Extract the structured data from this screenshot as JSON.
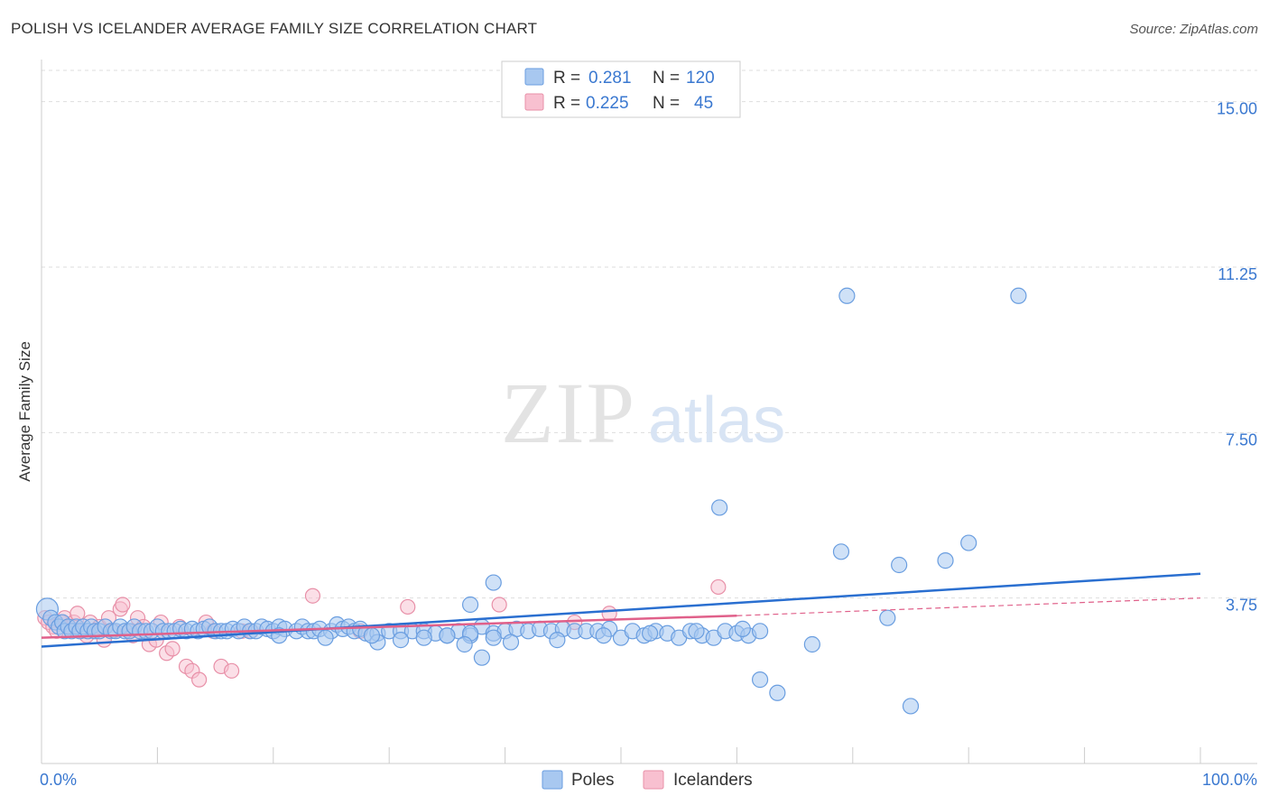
{
  "header": {
    "title": "POLISH VS ICELANDER AVERAGE FAMILY SIZE CORRELATION CHART",
    "source": "Source: ZipAtlas.com"
  },
  "watermark": {
    "zip": "ZIP",
    "atlas": "atlas"
  },
  "legend_top": {
    "rows": [
      {
        "r_label": "R =",
        "r_value": "0.281",
        "n_label": "N =",
        "n_value": "120",
        "color": "#a8c8f0"
      },
      {
        "r_label": "R =",
        "r_value": "0.225",
        "n_label": "N =",
        "n_value": "45",
        "color": "#f8b8cc"
      }
    ]
  },
  "legend_bottom": {
    "items": [
      "Poles",
      "Icelanders"
    ]
  },
  "colors": {
    "poles_fill": "#a8c8f0",
    "poles_stroke": "#6a9ee0",
    "poles_line": "#2a6fd0",
    "icel_fill": "#f8c0d0",
    "icel_stroke": "#e890a8",
    "icel_line": "#e0608a",
    "tick_label": "#3a78d0",
    "grid": "#dddddd"
  },
  "chart_data": {
    "type": "scatter",
    "title": "POLISH VS ICELANDER AVERAGE FAMILY SIZE CORRELATION CHART",
    "xlabel": "",
    "ylabel": "Average Family Size",
    "xlim": [
      0,
      100
    ],
    "ylim": [
      0,
      15.75
    ],
    "x_tick_labels": [
      "0.0%",
      "100.0%"
    ],
    "y_ticks": [
      3.75,
      7.5,
      11.25,
      15.0
    ],
    "y_tick_labels": [
      "3.75",
      "7.50",
      "11.25",
      "15.00"
    ],
    "grid": true,
    "legend_position": "top-center",
    "series": [
      {
        "name": "Poles",
        "r": 0.281,
        "n": 120,
        "trend": {
          "x": [
            0,
            100
          ],
          "y": [
            2.65,
            4.3
          ]
        },
        "points": [
          [
            0.5,
            3.5
          ],
          [
            0.8,
            3.3
          ],
          [
            1.2,
            3.2
          ],
          [
            1.5,
            3.1
          ],
          [
            1.8,
            3.2
          ],
          [
            2.0,
            3.0
          ],
          [
            2.3,
            3.1
          ],
          [
            2.6,
            3.0
          ],
          [
            3.0,
            3.1
          ],
          [
            3.3,
            3.0
          ],
          [
            3.6,
            3.1
          ],
          [
            4.0,
            3.0
          ],
          [
            4.3,
            3.1
          ],
          [
            4.6,
            3.0
          ],
          [
            5.0,
            3.0
          ],
          [
            5.5,
            3.1
          ],
          [
            6.0,
            3.0
          ],
          [
            6.4,
            3.0
          ],
          [
            6.8,
            3.1
          ],
          [
            7.2,
            3.0
          ],
          [
            7.6,
            3.0
          ],
          [
            8.0,
            3.1
          ],
          [
            8.5,
            3.0
          ],
          [
            9.0,
            3.0
          ],
          [
            9.5,
            3.0
          ],
          [
            10.0,
            3.1
          ],
          [
            10.5,
            3.0
          ],
          [
            11.0,
            3.0
          ],
          [
            11.5,
            3.0
          ],
          [
            12.0,
            3.05
          ],
          [
            12.5,
            3.0
          ],
          [
            13.0,
            3.05
          ],
          [
            13.5,
            3.0
          ],
          [
            14.0,
            3.05
          ],
          [
            14.5,
            3.1
          ],
          [
            15.0,
            3.0
          ],
          [
            15.5,
            3.0
          ],
          [
            16.0,
            3.0
          ],
          [
            16.5,
            3.05
          ],
          [
            17.0,
            3.0
          ],
          [
            17.5,
            3.1
          ],
          [
            18.0,
            3.0
          ],
          [
            18.5,
            3.0
          ],
          [
            19.0,
            3.1
          ],
          [
            19.5,
            3.05
          ],
          [
            20.0,
            3.0
          ],
          [
            20.5,
            3.1
          ],
          [
            21.0,
            3.05
          ],
          [
            22.0,
            3.0
          ],
          [
            22.5,
            3.1
          ],
          [
            23.0,
            3.0
          ],
          [
            23.5,
            3.0
          ],
          [
            24.0,
            3.05
          ],
          [
            25.0,
            3.0
          ],
          [
            25.5,
            3.15
          ],
          [
            26.0,
            3.05
          ],
          [
            26.5,
            3.1
          ],
          [
            27.0,
            3.0
          ],
          [
            27.5,
            3.05
          ],
          [
            28.0,
            2.95
          ],
          [
            29.0,
            2.95
          ],
          [
            30.0,
            3.0
          ],
          [
            31.0,
            3.0
          ],
          [
            32.0,
            3.0
          ],
          [
            33.0,
            3.0
          ],
          [
            34.0,
            2.95
          ],
          [
            35.0,
            2.9
          ],
          [
            36.0,
            3.0
          ],
          [
            37.0,
            2.9
          ],
          [
            38.0,
            3.1
          ],
          [
            39.0,
            2.95
          ],
          [
            40.0,
            3.0
          ],
          [
            41.0,
            3.05
          ],
          [
            42.0,
            3.0
          ],
          [
            43.0,
            3.05
          ],
          [
            44.0,
            3.0
          ],
          [
            45.0,
            3.05
          ],
          [
            46.0,
            3.0
          ],
          [
            47.0,
            3.0
          ],
          [
            48.0,
            3.0
          ],
          [
            49.0,
            3.05
          ],
          [
            50.0,
            2.85
          ],
          [
            51.0,
            3.0
          ],
          [
            52.0,
            2.9
          ],
          [
            53.0,
            3.0
          ],
          [
            54.0,
            2.95
          ],
          [
            55.0,
            2.85
          ],
          [
            56.0,
            3.0
          ],
          [
            57.0,
            2.9
          ],
          [
            58.0,
            2.85
          ],
          [
            59.0,
            3.0
          ],
          [
            60.0,
            2.95
          ],
          [
            61.0,
            2.9
          ],
          [
            62.0,
            3.0
          ],
          [
            29.0,
            2.75
          ],
          [
            31.0,
            2.8
          ],
          [
            33.0,
            2.85
          ],
          [
            35.0,
            2.9
          ],
          [
            37.0,
            2.95
          ],
          [
            39.0,
            2.85
          ],
          [
            36.5,
            2.7
          ],
          [
            40.5,
            2.75
          ],
          [
            44.5,
            2.8
          ],
          [
            48.5,
            2.9
          ],
          [
            52.5,
            2.95
          ],
          [
            56.5,
            3.0
          ],
          [
            60.5,
            3.05
          ],
          [
            20.5,
            2.9
          ],
          [
            24.5,
            2.85
          ],
          [
            28.5,
            2.9
          ],
          [
            58.5,
            5.8
          ],
          [
            69.5,
            10.6
          ],
          [
            84.3,
            10.6
          ],
          [
            69.0,
            4.8
          ],
          [
            80.0,
            5.0
          ],
          [
            78.0,
            4.6
          ],
          [
            74.0,
            4.5
          ],
          [
            73.0,
            3.3
          ],
          [
            75.0,
            1.3
          ],
          [
            62.0,
            1.9
          ],
          [
            63.5,
            1.6
          ],
          [
            66.5,
            2.7
          ],
          [
            37.0,
            3.6
          ],
          [
            39.0,
            4.1
          ],
          [
            38.0,
            2.4
          ]
        ]
      },
      {
        "name": "Icelanders",
        "r": 0.225,
        "n": 45,
        "trend_solid": {
          "x": [
            0,
            60
          ],
          "y": [
            2.85,
            3.35
          ]
        },
        "trend_dashed": {
          "x": [
            60,
            100
          ],
          "y": [
            3.35,
            3.75
          ]
        },
        "points": [
          [
            0.3,
            3.3
          ],
          [
            0.6,
            3.2
          ],
          [
            1.0,
            3.1
          ],
          [
            1.3,
            3.0
          ],
          [
            1.7,
            3.2
          ],
          [
            2.0,
            3.3
          ],
          [
            2.4,
            3.1
          ],
          [
            2.8,
            3.2
          ],
          [
            3.1,
            3.4
          ],
          [
            3.5,
            3.0
          ],
          [
            3.9,
            2.9
          ],
          [
            4.2,
            3.2
          ],
          [
            4.6,
            3.0
          ],
          [
            5.0,
            3.1
          ],
          [
            5.4,
            2.8
          ],
          [
            5.8,
            3.3
          ],
          [
            6.2,
            3.0
          ],
          [
            6.8,
            3.5
          ],
          [
            7.0,
            3.6
          ],
          [
            7.5,
            3.0
          ],
          [
            7.9,
            2.9
          ],
          [
            8.3,
            3.3
          ],
          [
            8.8,
            3.1
          ],
          [
            9.3,
            2.7
          ],
          [
            9.9,
            2.8
          ],
          [
            10.3,
            3.2
          ],
          [
            10.8,
            2.5
          ],
          [
            11.3,
            2.6
          ],
          [
            11.9,
            3.1
          ],
          [
            12.5,
            2.2
          ],
          [
            13.0,
            2.1
          ],
          [
            13.6,
            1.9
          ],
          [
            14.2,
            3.2
          ],
          [
            14.8,
            3.0
          ],
          [
            15.5,
            2.2
          ],
          [
            16.4,
            2.1
          ],
          [
            17.3,
            3.0
          ],
          [
            18.1,
            3.0
          ],
          [
            23.4,
            3.8
          ],
          [
            27.5,
            3.0
          ],
          [
            31.6,
            3.55
          ],
          [
            39.5,
            3.6
          ],
          [
            46.0,
            3.2
          ],
          [
            49.0,
            3.4
          ],
          [
            58.4,
            4.0
          ]
        ]
      }
    ]
  }
}
